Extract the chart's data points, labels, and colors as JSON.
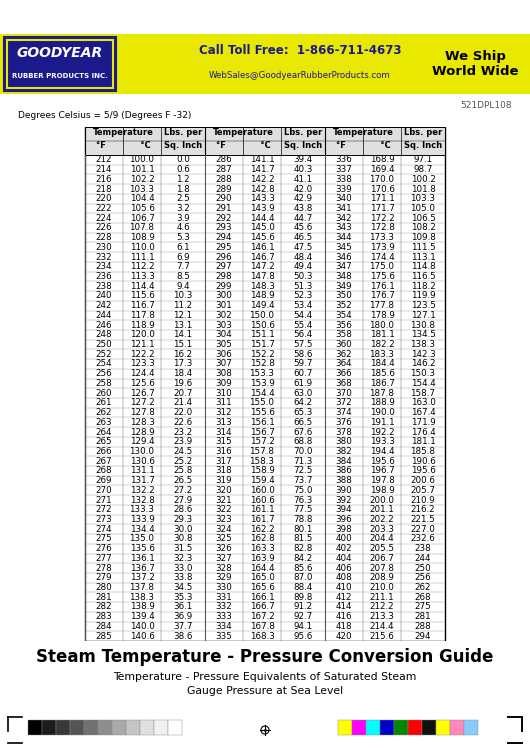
{
  "title": "Steam Temperature - Pressure Conversion Guide",
  "subtitle1": "Temperature - Pressure Equivalents of Saturated Steam",
  "subtitle2": "Gauge Pressure at Sea Level",
  "footnote": "Degrees Celsius = 5/9 (Degrees F -32)",
  "doc_number": "521DPL108",
  "footer_phone": "Call Toll Free:  1-866-711-4673",
  "footer_email": "WebSales@GoodyearRubberProducts.com",
  "footer_ship": "We Ship\nWorld Wide",
  "gray_swatches": [
    "#000000",
    "#1a1a1a",
    "#333333",
    "#4d4d4d",
    "#666666",
    "#808080",
    "#999999",
    "#b3b3b3",
    "#cccccc",
    "#e6e6e6",
    "#ffffff"
  ],
  "color_swatches": [
    "#ffff00",
    "#ff00ff",
    "#00ffff",
    "#0000cc",
    "#008800",
    "#ff0000",
    "#111111",
    "#ffff00",
    "#ff88bb",
    "#88ccff"
  ],
  "table_data": [
    [
      212,
      100.0,
      0.0,
      286,
      141.1,
      39.4,
      336,
      168.9,
      97.1
    ],
    [
      214,
      101.1,
      0.6,
      287,
      141.7,
      40.3,
      337,
      169.4,
      98.7
    ],
    [
      216,
      102.2,
      1.2,
      288,
      142.2,
      41.1,
      338,
      170.0,
      100.2
    ],
    [
      218,
      103.3,
      1.8,
      289,
      142.8,
      42.0,
      339,
      170.6,
      101.8
    ],
    [
      220,
      104.4,
      2.5,
      290,
      143.3,
      42.9,
      340,
      171.1,
      103.3
    ],
    [
      222,
      105.6,
      3.2,
      291,
      143.9,
      43.8,
      341,
      171.7,
      105.0
    ],
    [
      224,
      106.7,
      3.9,
      292,
      144.4,
      44.7,
      342,
      172.2,
      106.5
    ],
    [
      226,
      107.8,
      4.6,
      293,
      145.0,
      45.6,
      343,
      172.8,
      108.2
    ],
    [
      228,
      108.9,
      5.3,
      294,
      145.6,
      46.5,
      344,
      173.3,
      109.8
    ],
    [
      230,
      110.0,
      6.1,
      295,
      146.1,
      47.5,
      345,
      173.9,
      111.5
    ],
    [
      232,
      111.1,
      6.9,
      296,
      146.7,
      48.4,
      346,
      174.4,
      113.1
    ],
    [
      234,
      112.2,
      7.7,
      297,
      147.2,
      49.4,
      347,
      175.0,
      114.8
    ],
    [
      236,
      113.3,
      8.5,
      298,
      147.8,
      50.3,
      348,
      175.6,
      116.5
    ],
    [
      238,
      114.4,
      9.4,
      299,
      148.3,
      51.3,
      349,
      176.1,
      118.2
    ],
    [
      240,
      115.6,
      10.3,
      300,
      148.9,
      52.3,
      350,
      176.7,
      119.9
    ],
    [
      242,
      116.7,
      11.2,
      301,
      149.4,
      53.4,
      352,
      177.8,
      123.5
    ],
    [
      244,
      117.8,
      12.1,
      302,
      150.0,
      54.4,
      354,
      178.9,
      127.1
    ],
    [
      246,
      118.9,
      13.1,
      303,
      150.6,
      55.4,
      356,
      180.0,
      130.8
    ],
    [
      248,
      120.0,
      14.1,
      304,
      151.1,
      56.4,
      358,
      181.1,
      134.5
    ],
    [
      250,
      121.1,
      15.1,
      305,
      151.7,
      57.5,
      360,
      182.2,
      138.3
    ],
    [
      252,
      122.2,
      16.2,
      306,
      152.2,
      58.6,
      362,
      183.3,
      142.3
    ],
    [
      254,
      123.3,
      17.3,
      307,
      152.8,
      59.7,
      364,
      184.4,
      146.2
    ],
    [
      256,
      124.4,
      18.4,
      308,
      153.3,
      60.7,
      366,
      185.6,
      150.3
    ],
    [
      258,
      125.6,
      19.6,
      309,
      153.9,
      61.9,
      368,
      186.7,
      154.4
    ],
    [
      260,
      126.7,
      20.7,
      310,
      154.4,
      63.0,
      370,
      187.8,
      158.7
    ],
    [
      261,
      127.2,
      21.4,
      311,
      155.0,
      64.2,
      372,
      188.9,
      163.0
    ],
    [
      262,
      127.8,
      22.0,
      312,
      155.6,
      65.3,
      374,
      190.0,
      167.4
    ],
    [
      263,
      128.3,
      22.6,
      313,
      156.1,
      66.5,
      376,
      191.1,
      171.9
    ],
    [
      264,
      128.9,
      23.2,
      314,
      156.7,
      67.6,
      378,
      192.2,
      176.4
    ],
    [
      265,
      129.4,
      23.9,
      315,
      157.2,
      68.8,
      380,
      193.3,
      181.1
    ],
    [
      266,
      130.0,
      24.5,
      316,
      157.8,
      70.0,
      382,
      194.4,
      185.8
    ],
    [
      267,
      130.6,
      25.2,
      317,
      158.3,
      71.3,
      384,
      195.6,
      190.6
    ],
    [
      268,
      131.1,
      25.8,
      318,
      158.9,
      72.5,
      386,
      196.7,
      195.6
    ],
    [
      269,
      131.7,
      26.5,
      319,
      159.4,
      73.7,
      388,
      197.8,
      200.6
    ],
    [
      270,
      132.2,
      27.2,
      320,
      160.0,
      75.0,
      390,
      198.9,
      205.7
    ],
    [
      271,
      132.8,
      27.9,
      321,
      160.6,
      76.3,
      392,
      200.0,
      210.9
    ],
    [
      272,
      133.3,
      28.6,
      322,
      161.1,
      77.5,
      394,
      201.1,
      216.2
    ],
    [
      273,
      133.9,
      29.3,
      323,
      161.7,
      78.8,
      396,
      202.2,
      221.5
    ],
    [
      274,
      134.4,
      30.0,
      324,
      162.2,
      80.1,
      398,
      203.3,
      227.0
    ],
    [
      275,
      135.0,
      30.8,
      325,
      162.8,
      81.5,
      400,
      204.4,
      232.6
    ],
    [
      276,
      135.6,
      31.5,
      326,
      163.3,
      82.8,
      402,
      205.5,
      238
    ],
    [
      277,
      136.1,
      32.3,
      327,
      163.9,
      84.2,
      404,
      206.7,
      244
    ],
    [
      278,
      136.7,
      33.0,
      328,
      164.4,
      85.6,
      406,
      207.8,
      250
    ],
    [
      279,
      137.2,
      33.8,
      329,
      165.0,
      87.0,
      408,
      208.9,
      256
    ],
    [
      280,
      137.8,
      34.5,
      330,
      165.6,
      88.4,
      410,
      210.0,
      262
    ],
    [
      281,
      138.3,
      35.3,
      331,
      166.1,
      89.8,
      412,
      211.1,
      268
    ],
    [
      282,
      138.9,
      36.1,
      332,
      166.7,
      91.2,
      414,
      212.2,
      275
    ],
    [
      283,
      139.4,
      36.9,
      333,
      167.2,
      92.7,
      416,
      213.3,
      281
    ],
    [
      284,
      140.0,
      37.7,
      334,
      167.8,
      94.1,
      418,
      214.4,
      288
    ],
    [
      285,
      140.6,
      38.6,
      335,
      168.3,
      95.6,
      420,
      215.6,
      294
    ]
  ]
}
